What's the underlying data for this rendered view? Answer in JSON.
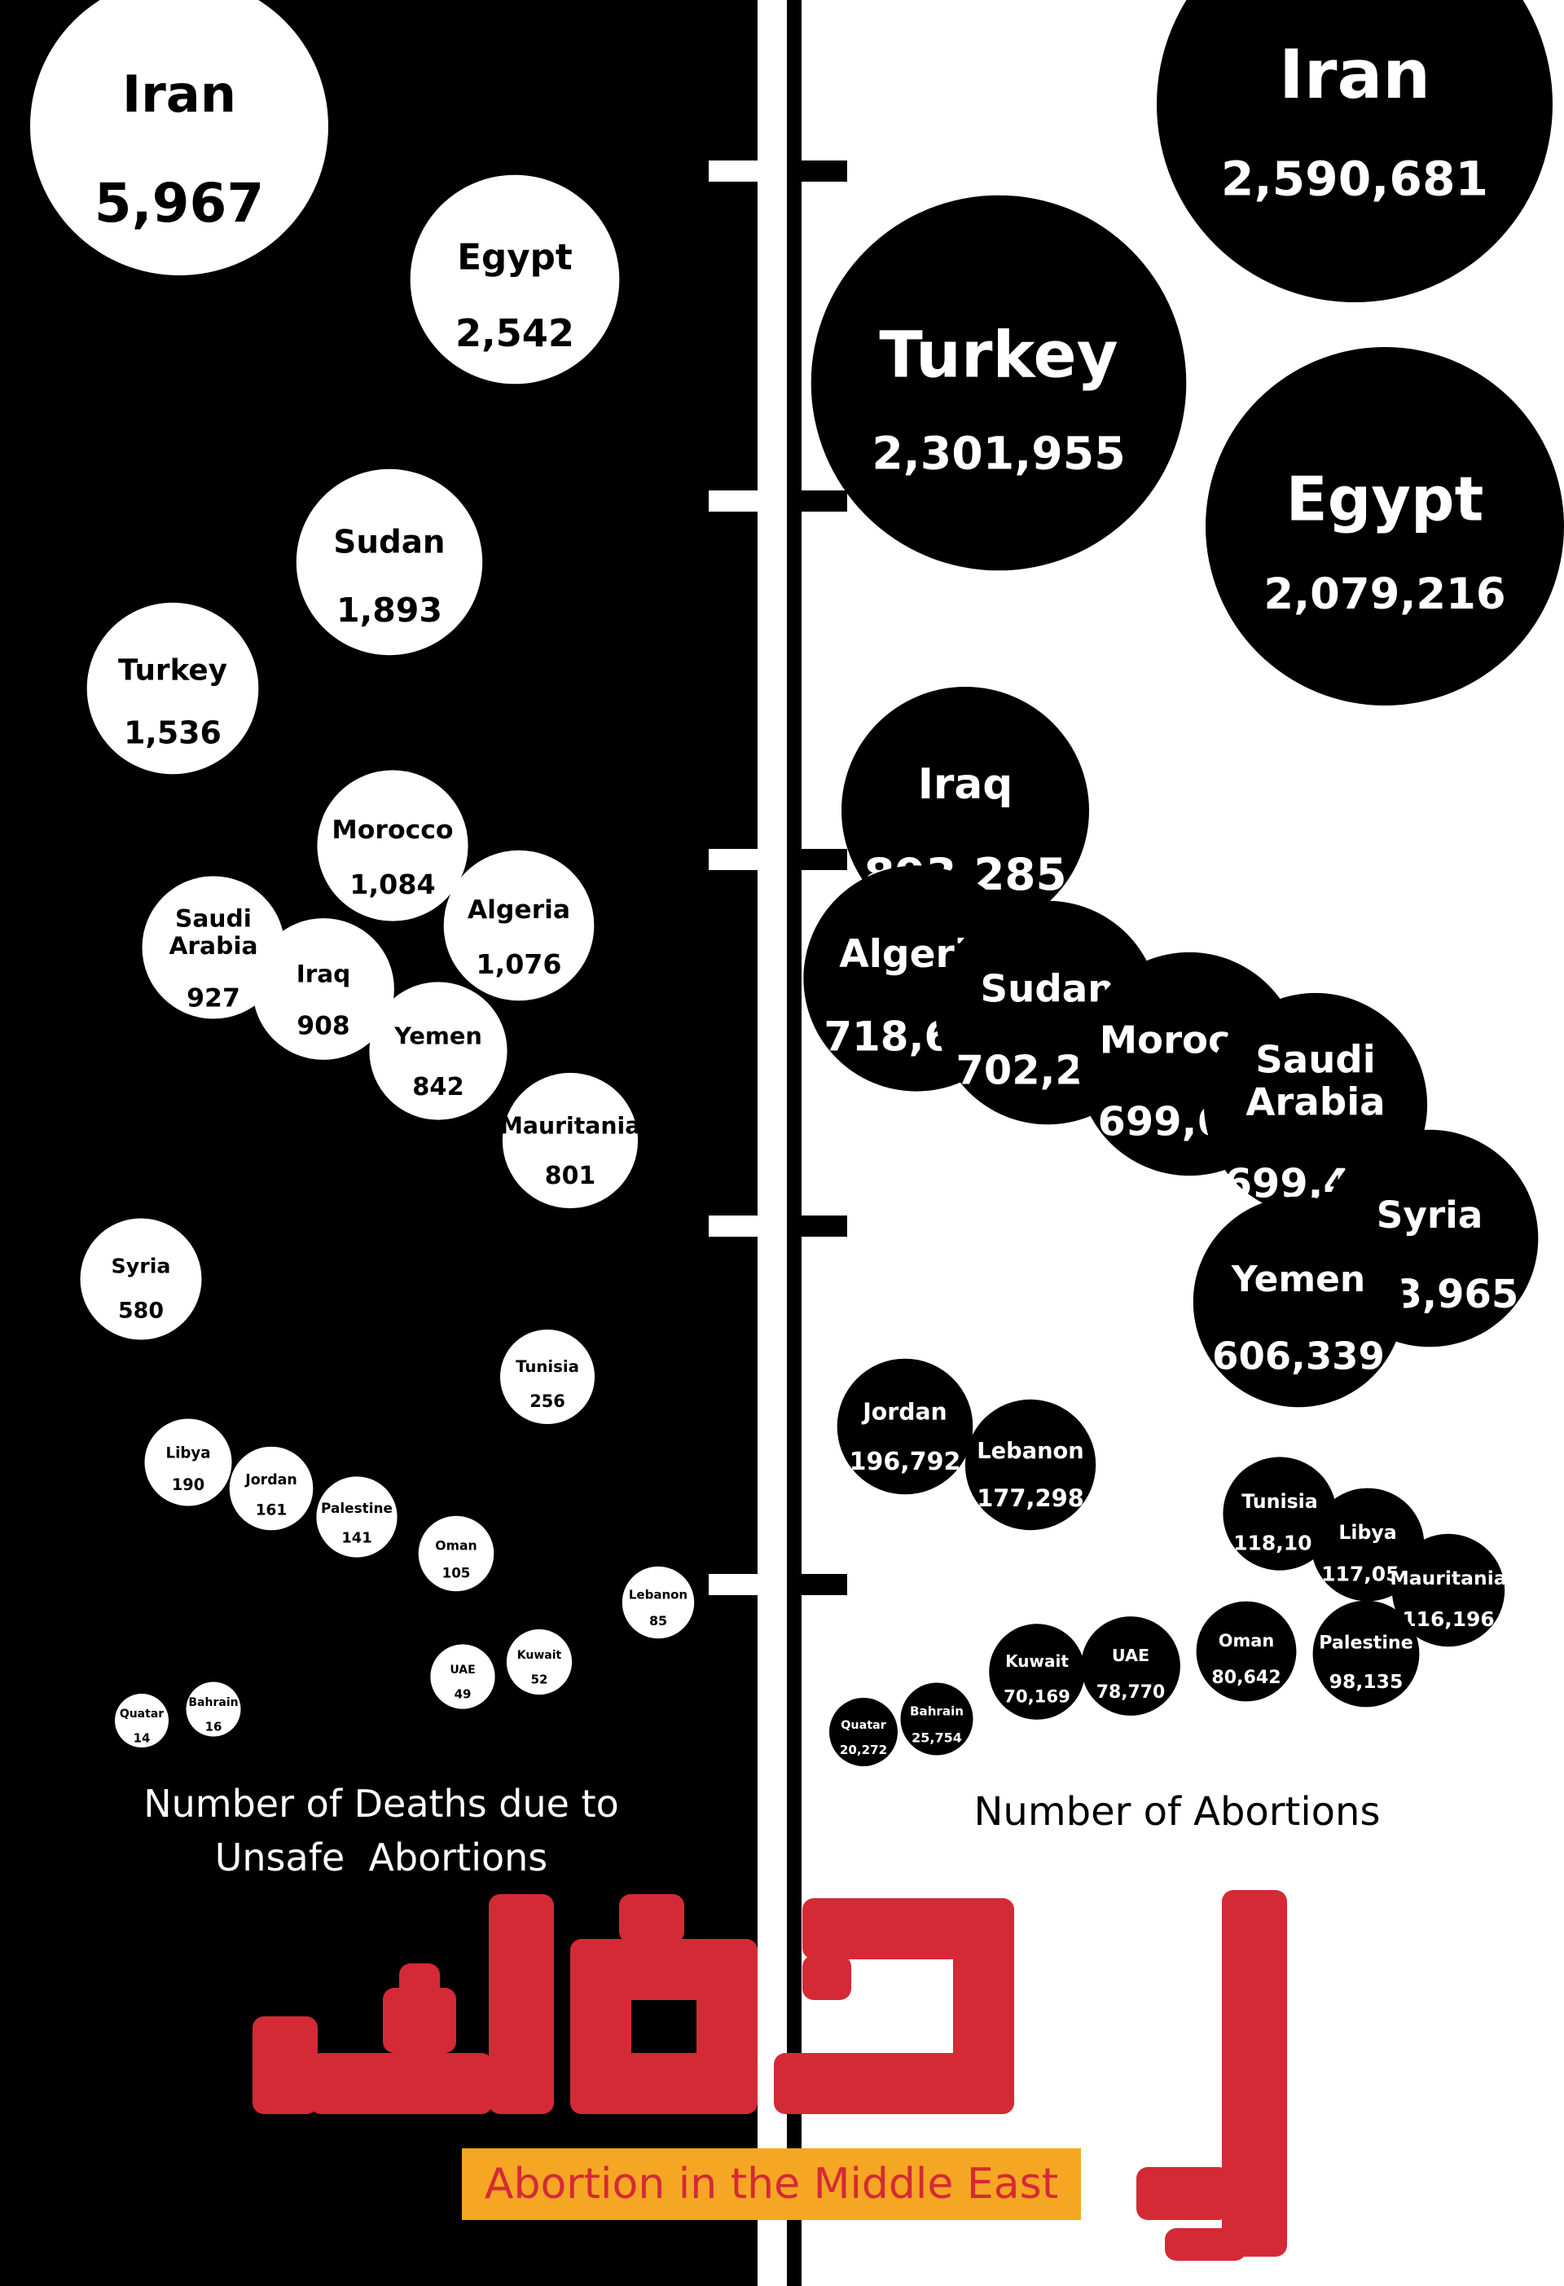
{
  "colors": {
    "left_bg": "#000000",
    "right_bg": "#ffffff",
    "accent": "#d42a36",
    "label_bg": "#f5a623"
  },
  "arabic_title": "إجهاض",
  "subtitle": "Abortion in the Middle East",
  "chart_data": [
    {
      "type": "bubble",
      "title": "Number of Deaths due to Unsafe Abortions",
      "title_lines": [
        "Number of Deaths due to",
        "Unsafe  Abortions"
      ],
      "categories": [
        "Iran",
        "Egypt",
        "Sudan",
        "Turkey",
        "Morocco",
        "Algeria",
        "Saudi Arabia",
        "Iraq",
        "Yemen",
        "Mauritania",
        "Syria",
        "Tunisia",
        "Libya",
        "Jordan",
        "Palestine",
        "Oman",
        "Lebanon",
        "Kuwait",
        "UAE",
        "Bahrain",
        "Quatar"
      ],
      "labels": [
        "Iran",
        "Egypt",
        "Sudan",
        "Turkey",
        "Morocco",
        "Algeria",
        "Saudi\nArabia",
        "Iraq",
        "Yemen",
        "Mauritania",
        "Syria",
        "Tunisia",
        "Libya",
        "Jordan",
        "Palestine",
        "Oman",
        "Lebanon",
        "Kuwait",
        "UAE",
        "Bahrain",
        "Quatar"
      ],
      "values": [
        5967,
        2542,
        1893,
        1536,
        1084,
        1076,
        927,
        908,
        842,
        801,
        580,
        256,
        190,
        161,
        141,
        105,
        85,
        52,
        49,
        16,
        14
      ],
      "value_labels": [
        "5,967",
        "2,542",
        "1,893",
        "1,536",
        "1,084",
        "1,076",
        "927",
        "908",
        "842",
        "801",
        "580",
        "256",
        "190",
        "161",
        "141",
        "105",
        "85",
        "52",
        "49",
        "16",
        "14"
      ]
    },
    {
      "type": "bubble",
      "title": "Number of Abortions",
      "categories": [
        "Iran",
        "Turkey",
        "Egypt",
        "Iraq",
        "Algeria",
        "Sudan",
        "Morocco",
        "Saudi Arabia",
        "Syria",
        "Yemen",
        "Jordan",
        "Lebanon",
        "Tunisia",
        "Libya",
        "Mauritania",
        "Palestine",
        "Oman",
        "UAE",
        "Kuwait",
        "Bahrain",
        "Quatar"
      ],
      "labels": [
        "Iran",
        "Turkey",
        "Egypt",
        "Iraq",
        "Algeria",
        "Sudan",
        "Morocco",
        "Saudi\nArabia",
        "Syria",
        "Yemen",
        "Jordan",
        "Lebanon",
        "Tunisia",
        "Libya",
        "Mauritania",
        "Palestine",
        "Oman",
        "UAE",
        "Kuwait",
        "Bahrain",
        "Quatar"
      ],
      "values": [
        2590681,
        2301955,
        2079216,
        893285,
        718670,
        702248,
        699692,
        699405,
        653965,
        606339,
        196792,
        177298,
        118102,
        117050,
        116196,
        98135,
        80642,
        78770,
        70169,
        25754,
        20272
      ],
      "value_labels": [
        "2,590,681",
        "2,301,955",
        "2,079,216",
        "893,285",
        "718,670",
        "702,248",
        "699,692",
        "699,405",
        "653,965",
        "606,339",
        "196,792",
        "177,298",
        "118,102",
        "117,050",
        "116,196",
        "98,135",
        "80,642",
        "78,770",
        "70,169",
        "25,754",
        "20,272"
      ]
    }
  ]
}
